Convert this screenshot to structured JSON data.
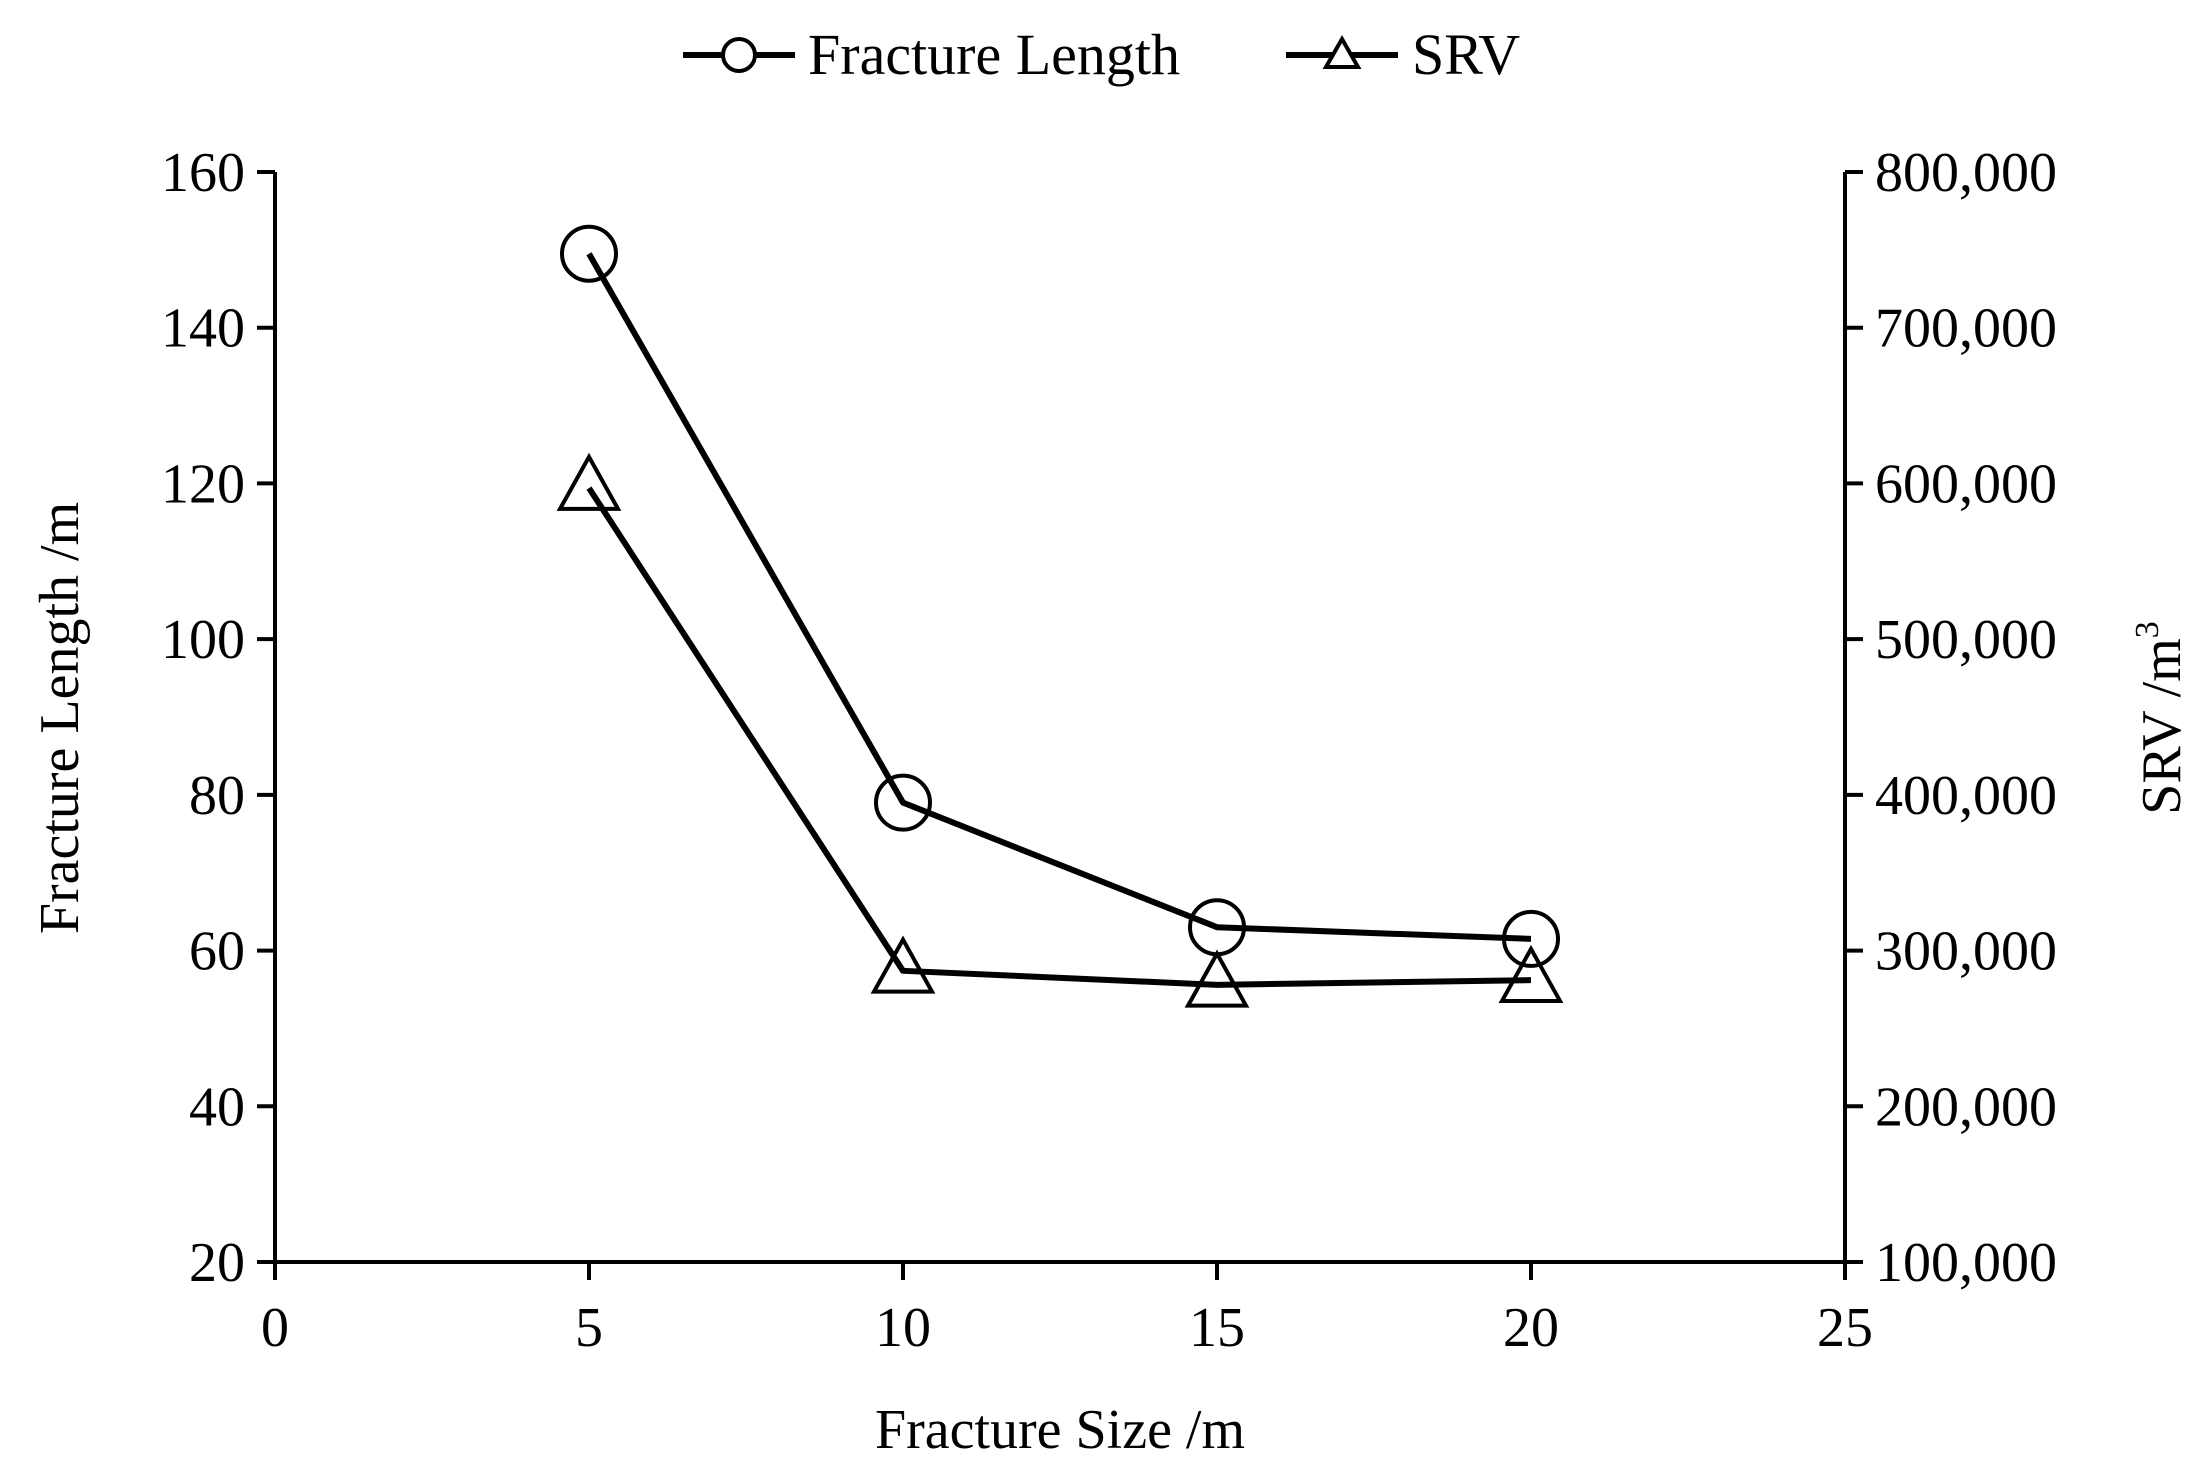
{
  "chart_data": {
    "type": "line",
    "title": "",
    "xlabel": "Fracture Size /m",
    "ylabel_left": "Fracture Length /m",
    "ylabel_right_base": "SRV /m",
    "ylabel_right_sup": "3",
    "xlim": [
      0,
      25
    ],
    "ylim_left": [
      20,
      160
    ],
    "ylim_right": [
      100000,
      800000
    ],
    "x_ticks": [
      0,
      5,
      10,
      15,
      20,
      25
    ],
    "x_tick_labels": [
      "0",
      "5",
      "10",
      "15",
      "20",
      "25"
    ],
    "y_left_ticks": [
      20,
      40,
      60,
      80,
      100,
      120,
      140,
      160
    ],
    "y_left_tick_labels": [
      "20",
      "40",
      "60",
      "80",
      "100",
      "120",
      "140",
      "160"
    ],
    "y_right_ticks": [
      100000,
      200000,
      300000,
      400000,
      500000,
      600000,
      700000,
      800000
    ],
    "y_right_tick_labels": [
      "100,000",
      "200,000",
      "300,000",
      "400,000",
      "500,000",
      "600,000",
      "700,000",
      "800,000"
    ],
    "grid": false,
    "legend_position": "top-center",
    "series": [
      {
        "name": "Fracture Length",
        "axis": "left",
        "marker": "circle",
        "color": "#000000",
        "x": [
          5,
          10,
          15,
          20
        ],
        "y": [
          149.5,
          79,
          63,
          61.5
        ]
      },
      {
        "name": "SRV",
        "axis": "right",
        "marker": "triangle",
        "color": "#000000",
        "x": [
          5,
          10,
          15,
          20
        ],
        "y": [
          597000,
          287000,
          278000,
          281000
        ]
      }
    ]
  }
}
